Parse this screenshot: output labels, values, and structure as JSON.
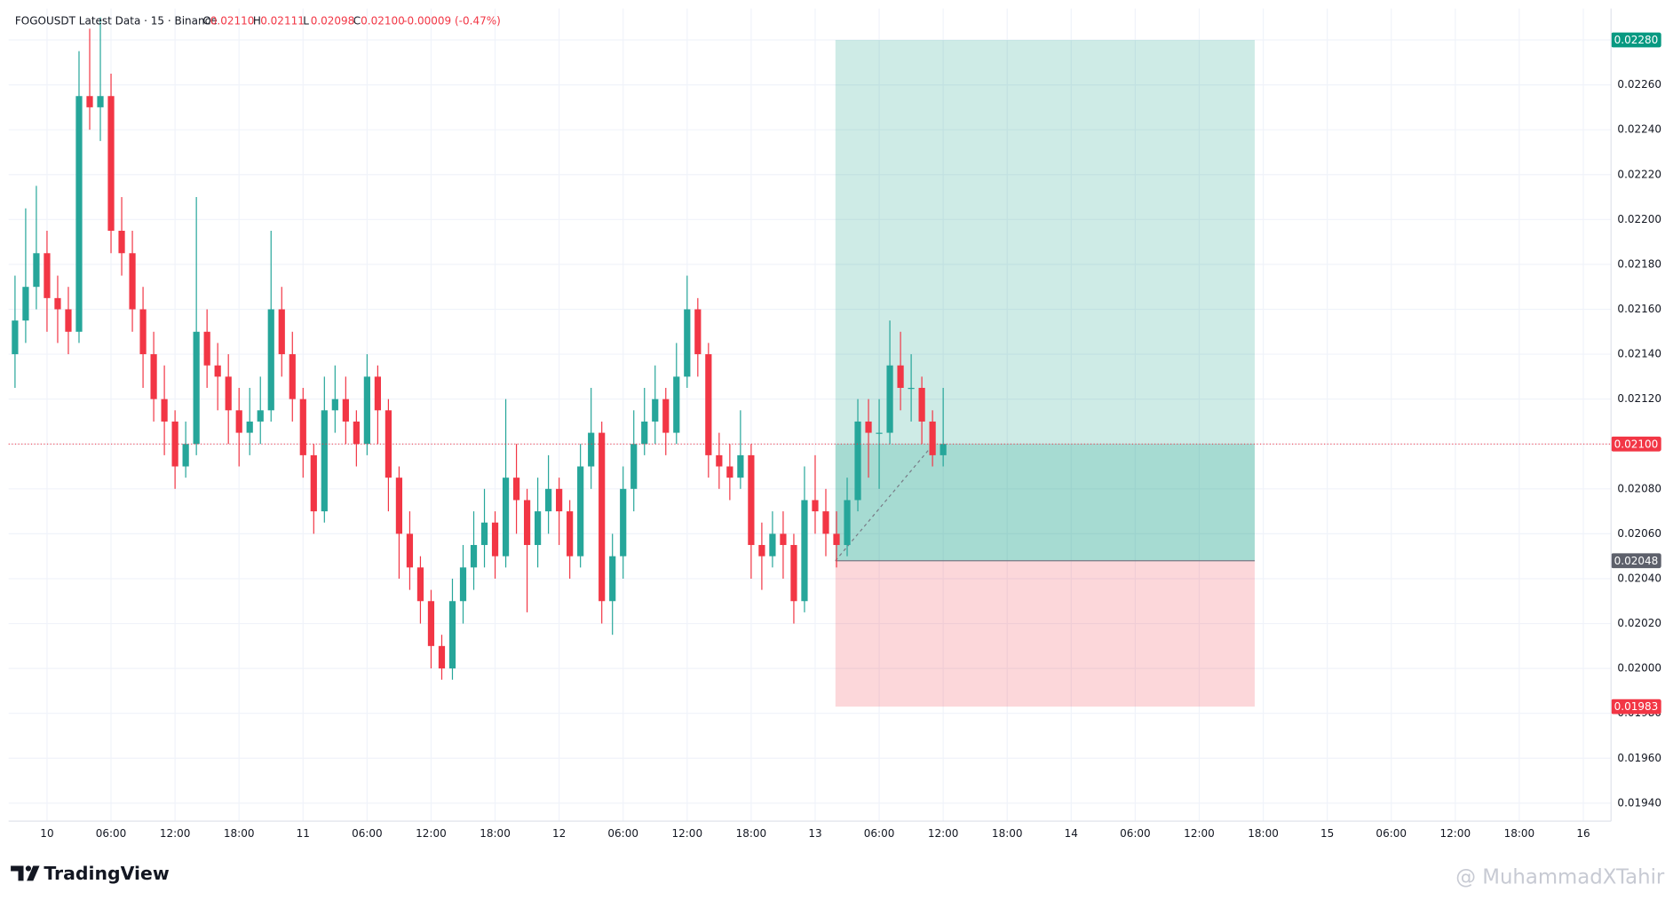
{
  "header": {
    "symbol": "FOGOUSDT Latest Data · 15 · Binance",
    "ohlc": [
      {
        "key": "O",
        "text": "0.02110"
      },
      {
        "key": "H",
        "text": "0.02111"
      },
      {
        "key": "L",
        "text": "0.02098"
      },
      {
        "key": "C",
        "text": "0.02100"
      }
    ],
    "change": "-0.00009 (-0.47%)"
  },
  "branding": {
    "logo": "TradingView",
    "watermark": "@ MuhammadXTahir"
  },
  "chart_data": {
    "type": "candlestick",
    "x": [
      -3,
      -2,
      -1,
      0,
      1,
      2,
      3,
      4,
      5,
      6,
      7,
      8,
      9,
      10,
      11,
      12,
      13,
      14,
      15,
      16,
      17,
      18,
      19,
      20,
      21,
      22,
      23,
      24,
      25,
      26,
      27,
      28,
      29,
      30,
      31,
      32,
      33,
      34,
      35,
      36,
      37,
      38,
      39,
      40,
      41,
      42,
      43,
      44,
      45,
      46,
      47,
      48,
      49,
      50,
      51,
      52,
      53,
      54,
      55,
      56,
      57,
      58,
      59,
      60,
      61,
      62,
      63,
      64,
      65,
      66,
      67,
      68,
      69,
      70,
      71,
      72,
      73,
      74,
      75,
      76,
      77,
      78,
      79,
      80,
      81,
      82,
      83,
      84
    ],
    "open": [
      0.0214,
      0.02155,
      0.0217,
      0.02185,
      0.02165,
      0.0216,
      0.0215,
      0.02255,
      0.0225,
      0.02255,
      0.02195,
      0.02185,
      0.0216,
      0.0214,
      0.0212,
      0.0211,
      0.0209,
      0.021,
      0.0215,
      0.02135,
      0.0213,
      0.02115,
      0.02105,
      0.0211,
      0.02115,
      0.0216,
      0.0214,
      0.0212,
      0.02095,
      0.0207,
      0.02115,
      0.0212,
      0.0211,
      0.021,
      0.0213,
      0.02115,
      0.02085,
      0.0206,
      0.02045,
      0.0203,
      0.0201,
      0.02,
      0.0203,
      0.02045,
      0.02055,
      0.02065,
      0.0205,
      0.02085,
      0.02075,
      0.02055,
      0.0207,
      0.0208,
      0.0207,
      0.0205,
      0.0209,
      0.02105,
      0.0203,
      0.0205,
      0.0208,
      0.021,
      0.0211,
      0.0212,
      0.02105,
      0.0213,
      0.0216,
      0.0214,
      0.02095,
      0.0209,
      0.02085,
      0.02095,
      0.02055,
      0.0205,
      0.0206,
      0.02055,
      0.0203,
      0.02075,
      0.0207,
      0.0206,
      0.02055,
      0.02075,
      0.0211,
      0.02105,
      0.02105,
      0.02135,
      0.02125,
      0.02125,
      0.0211,
      0.02095
    ],
    "high": [
      0.02175,
      0.02205,
      0.02215,
      0.02195,
      0.02175,
      0.0217,
      0.02275,
      0.02285,
      0.0229,
      0.02265,
      0.0221,
      0.02195,
      0.0217,
      0.0215,
      0.02135,
      0.02115,
      0.0211,
      0.0221,
      0.0216,
      0.02145,
      0.0214,
      0.02125,
      0.02125,
      0.0213,
      0.02195,
      0.0217,
      0.0215,
      0.02125,
      0.021,
      0.0213,
      0.02135,
      0.0213,
      0.02115,
      0.0214,
      0.02135,
      0.0212,
      0.0209,
      0.0207,
      0.0205,
      0.02035,
      0.02015,
      0.0204,
      0.02055,
      0.0207,
      0.0208,
      0.0207,
      0.0212,
      0.021,
      0.0208,
      0.02085,
      0.02095,
      0.02085,
      0.02075,
      0.021,
      0.02125,
      0.0211,
      0.0206,
      0.0209,
      0.02115,
      0.02125,
      0.02135,
      0.02125,
      0.02145,
      0.02175,
      0.02165,
      0.02145,
      0.02105,
      0.021,
      0.02115,
      0.021,
      0.02065,
      0.0207,
      0.0207,
      0.0206,
      0.0209,
      0.02095,
      0.0208,
      0.0207,
      0.02085,
      0.0212,
      0.0212,
      0.0212,
      0.02155,
      0.0215,
      0.0214,
      0.0213,
      0.02115,
      0.02125
    ],
    "low": [
      0.02125,
      0.02145,
      0.0216,
      0.0215,
      0.02145,
      0.0214,
      0.02145,
      0.0224,
      0.02235,
      0.02185,
      0.02175,
      0.0215,
      0.02125,
      0.0211,
      0.02095,
      0.0208,
      0.02085,
      0.02095,
      0.02125,
      0.02115,
      0.021,
      0.0209,
      0.02095,
      0.021,
      0.0211,
      0.0213,
      0.0211,
      0.02085,
      0.0206,
      0.02065,
      0.02105,
      0.021,
      0.0209,
      0.02095,
      0.021,
      0.0207,
      0.0204,
      0.02035,
      0.0202,
      0.02,
      0.01995,
      0.01995,
      0.0202,
      0.02035,
      0.02045,
      0.0204,
      0.02045,
      0.0206,
      0.02025,
      0.02045,
      0.0206,
      0.02055,
      0.0204,
      0.02045,
      0.0208,
      0.0202,
      0.02015,
      0.0204,
      0.0207,
      0.02095,
      0.021,
      0.02095,
      0.021,
      0.02125,
      0.0213,
      0.02085,
      0.0208,
      0.02075,
      0.0208,
      0.0204,
      0.02035,
      0.02045,
      0.0204,
      0.0202,
      0.02025,
      0.0206,
      0.0205,
      0.02045,
      0.0205,
      0.0207,
      0.02085,
      0.0208,
      0.021,
      0.02115,
      0.0211,
      0.021,
      0.0209,
      0.0209
    ],
    "close": [
      0.02155,
      0.0217,
      0.02185,
      0.02165,
      0.0216,
      0.0215,
      0.02255,
      0.0225,
      0.02255,
      0.02195,
      0.02185,
      0.0216,
      0.0214,
      0.0212,
      0.0211,
      0.0209,
      0.021,
      0.0215,
      0.02135,
      0.0213,
      0.02115,
      0.02105,
      0.0211,
      0.02115,
      0.0216,
      0.0214,
      0.0212,
      0.02095,
      0.0207,
      0.02115,
      0.0212,
      0.0211,
      0.021,
      0.0213,
      0.02115,
      0.02085,
      0.0206,
      0.02045,
      0.0203,
      0.0201,
      0.02,
      0.0203,
      0.02045,
      0.02055,
      0.02065,
      0.0205,
      0.02085,
      0.02075,
      0.02055,
      0.0207,
      0.0208,
      0.0207,
      0.0205,
      0.0209,
      0.02105,
      0.0203,
      0.0205,
      0.0208,
      0.021,
      0.0211,
      0.0212,
      0.02105,
      0.0213,
      0.0216,
      0.0214,
      0.02095,
      0.0209,
      0.02085,
      0.02095,
      0.02055,
      0.0205,
      0.0206,
      0.02055,
      0.0203,
      0.02075,
      0.0207,
      0.0206,
      0.02055,
      0.02075,
      0.0211,
      0.02105,
      0.02105,
      0.02135,
      0.02125,
      0.02125,
      0.0211,
      0.02095,
      0.021
    ],
    "up_color": "#26a69a",
    "down_color": "#f23645",
    "xlim": [
      -3.6,
      146.6
    ],
    "xticks": [
      {
        "value": 0,
        "label": "10"
      },
      {
        "value": 6,
        "label": "06:00"
      },
      {
        "value": 12,
        "label": "12:00"
      },
      {
        "value": 18,
        "label": "18:00"
      },
      {
        "value": 24,
        "label": "11"
      },
      {
        "value": 30,
        "label": "06:00"
      },
      {
        "value": 36,
        "label": "12:00"
      },
      {
        "value": 42,
        "label": "18:00"
      },
      {
        "value": 48,
        "label": "12"
      },
      {
        "value": 54,
        "label": "06:00"
      },
      {
        "value": 60,
        "label": "12:00"
      },
      {
        "value": 66,
        "label": "18:00"
      },
      {
        "value": 72,
        "label": "13"
      },
      {
        "value": 78,
        "label": "06:00"
      },
      {
        "value": 84,
        "label": "12:00"
      },
      {
        "value": 90,
        "label": "18:00"
      },
      {
        "value": 96,
        "label": "14"
      },
      {
        "value": 102,
        "label": "06:00"
      },
      {
        "value": 108,
        "label": "12:00"
      },
      {
        "value": 114,
        "label": "18:00"
      },
      {
        "value": 120,
        "label": "15"
      },
      {
        "value": 126,
        "label": "06:00"
      },
      {
        "value": 132,
        "label": "12:00"
      },
      {
        "value": 138,
        "label": "18:00"
      },
      {
        "value": 144,
        "label": "16"
      }
    ],
    "ylim": [
      0.01932,
      0.02294
    ],
    "yticks": [
      {
        "value": 0.0194,
        "label": "0.01940"
      },
      {
        "value": 0.0196,
        "label": "0.01960"
      },
      {
        "value": 0.0198,
        "label": "0.01980"
      },
      {
        "value": 0.02,
        "label": "0.02000"
      },
      {
        "value": 0.0202,
        "label": "0.02020"
      },
      {
        "value": 0.0204,
        "label": "0.02040"
      },
      {
        "value": 0.0206,
        "label": "0.02060"
      },
      {
        "value": 0.0208,
        "label": "0.02080"
      },
      {
        "value": 0.021,
        "label": "0.02100"
      },
      {
        "value": 0.0212,
        "label": "0.02120"
      },
      {
        "value": 0.0214,
        "label": "0.02140"
      },
      {
        "value": 0.0216,
        "label": "0.02160"
      },
      {
        "value": 0.0218,
        "label": "0.02180"
      },
      {
        "value": 0.022,
        "label": "0.02200"
      },
      {
        "value": 0.0222,
        "label": "0.02220"
      },
      {
        "value": 0.0224,
        "label": "0.02240"
      },
      {
        "value": 0.0226,
        "label": "0.02260"
      },
      {
        "value": 0.0228,
        "label": "0.02280"
      }
    ],
    "grid": true,
    "last_price": {
      "value": 0.021,
      "label": "0.02100"
    },
    "position": {
      "start_x": 73.9,
      "end_x": 113.2,
      "now_x": 83.1,
      "target": {
        "value": 0.0228,
        "label": "0.02280"
      },
      "entry": {
        "value": 0.02048,
        "label": "0.02048"
      },
      "stop": {
        "value": 0.01983,
        "label": "0.01983"
      }
    }
  }
}
